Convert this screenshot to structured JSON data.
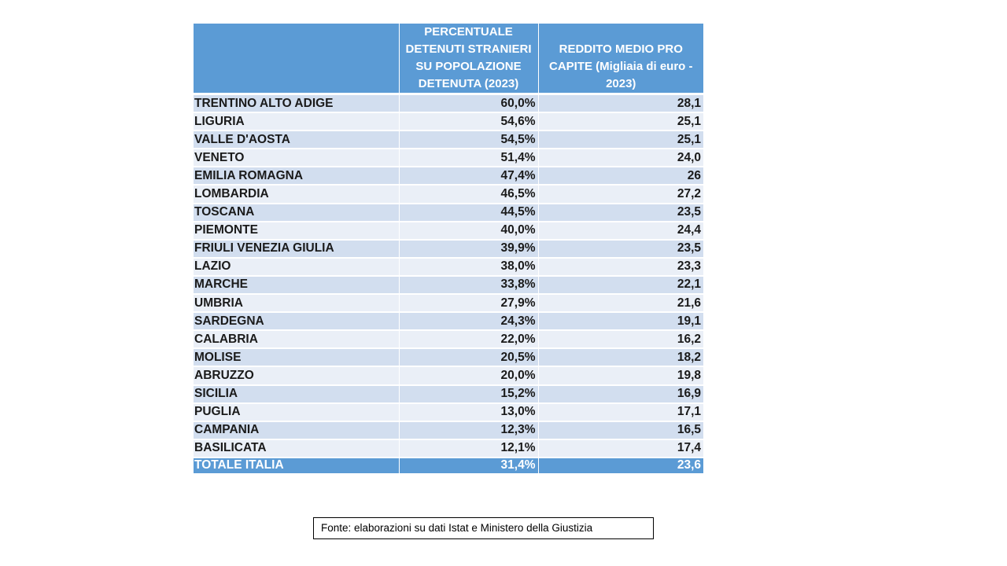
{
  "table": {
    "headers": [
      "",
      "PERCENTUALE DETENUTI STRANIERI SU POPOLAZIONE DETENUTA (2023)",
      "REDDITO MEDIO PRO CAPITE (Migliaia di euro - 2023)"
    ],
    "header_colors": {
      "header_bg": "#5b9bd5",
      "row_odd_bg": "#d2deef",
      "row_even_bg": "#eaeff7"
    },
    "rows": [
      {
        "region": "TRENTINO ALTO ADIGE",
        "pct": "60,0%",
        "income": "28,1"
      },
      {
        "region": "LIGURIA",
        "pct": "54,6%",
        "income": "25,1"
      },
      {
        "region": "VALLE D'AOSTA",
        "pct": "54,5%",
        "income": "25,1"
      },
      {
        "region": "VENETO",
        "pct": "51,4%",
        "income": "24,0"
      },
      {
        "region": "EMILIA ROMAGNA",
        "pct": "47,4%",
        "income": "26"
      },
      {
        "region": "LOMBARDIA",
        "pct": "46,5%",
        "income": "27,2"
      },
      {
        "region": "TOSCANA",
        "pct": "44,5%",
        "income": "23,5"
      },
      {
        "region": "PIEMONTE",
        "pct": "40,0%",
        "income": "24,4"
      },
      {
        "region": "FRIULI VENEZIA GIULIA",
        "pct": "39,9%",
        "income": "23,5"
      },
      {
        "region": "LAZIO",
        "pct": "38,0%",
        "income": "23,3"
      },
      {
        "region": "MARCHE",
        "pct": "33,8%",
        "income": "22,1"
      },
      {
        "region": "UMBRIA",
        "pct": "27,9%",
        "income": "21,6"
      },
      {
        "region": "SARDEGNA",
        "pct": "24,3%",
        "income": "19,1"
      },
      {
        "region": "CALABRIA",
        "pct": "22,0%",
        "income": "16,2"
      },
      {
        "region": "MOLISE",
        "pct": "20,5%",
        "income": "18,2"
      },
      {
        "region": "ABRUZZO",
        "pct": "20,0%",
        "income": "19,8"
      },
      {
        "region": "SICILIA",
        "pct": "15,2%",
        "income": "16,9"
      },
      {
        "region": "PUGLIA",
        "pct": "13,0%",
        "income": "17,1"
      },
      {
        "region": "CAMPANIA",
        "pct": "12,3%",
        "income": "16,5"
      },
      {
        "region": "BASILICATA",
        "pct": "12,1%",
        "income": "17,4"
      }
    ],
    "total": {
      "region": "TOTALE ITALIA",
      "pct": "31,4%",
      "income": "23,6"
    }
  },
  "source": "Fonte: elaborazioni su dati Istat e Ministero della Giustizia"
}
